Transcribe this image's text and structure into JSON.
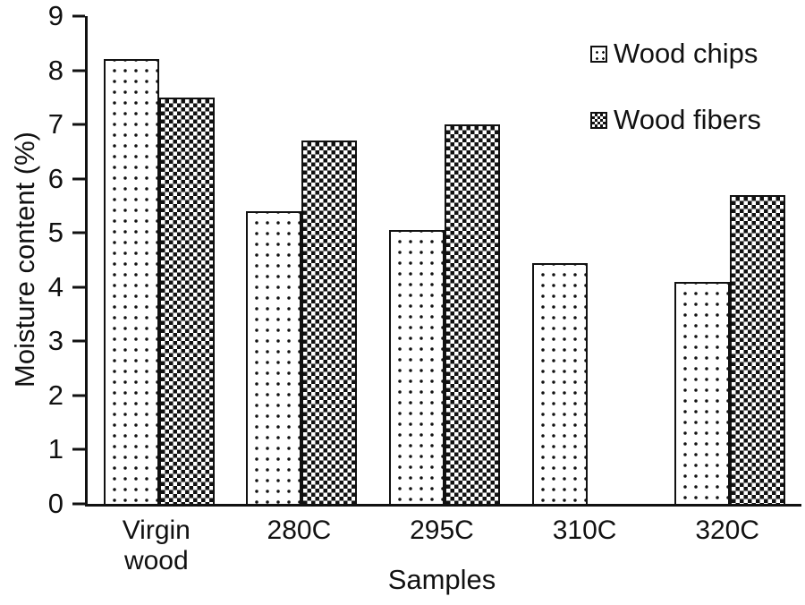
{
  "chart_data": {
    "type": "bar",
    "title": "",
    "xlabel": "Samples",
    "ylabel": "Moisture content (%)",
    "ylim": [
      0,
      9
    ],
    "ytick_step": 1,
    "grid": false,
    "legend_position": "top-right",
    "bar_outline_color": "#111111",
    "categories": [
      "Virgin wood",
      "280C",
      "295C",
      "310C",
      "320C"
    ],
    "tick_labels": [
      "Virgin\nwood",
      "280C",
      "295C",
      "310C",
      "320C"
    ],
    "series": [
      {
        "name": "Wood chips",
        "pattern": "dots",
        "values": [
          8.2,
          5.4,
          5.05,
          4.45,
          4.1
        ]
      },
      {
        "name": "Wood fibers",
        "pattern": "checker",
        "values": [
          7.5,
          6.7,
          7.0,
          null,
          5.7
        ]
      }
    ]
  }
}
